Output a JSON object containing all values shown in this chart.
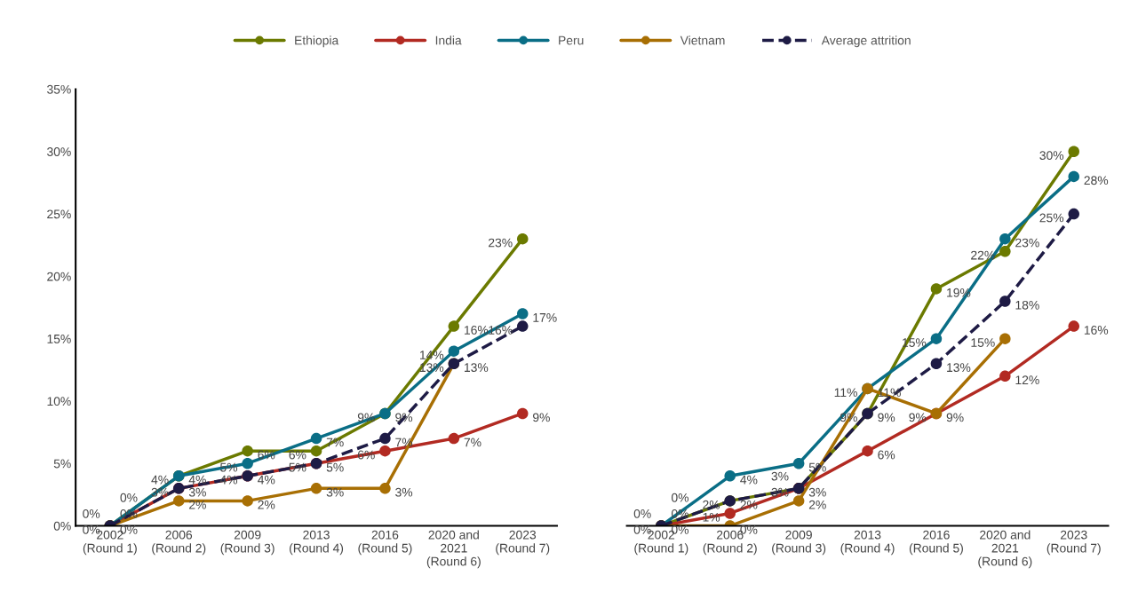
{
  "chart_data": [
    {
      "type": "line",
      "categories": [
        "2002\n(Round 1)",
        "2006\n(Round 2)",
        "2009\n(Round 3)",
        "2013\n(Round 4)",
        "2016\n(Round 5)",
        "2020 and\n2021\n(Round 6)",
        "2023\n(Round 7)"
      ],
      "series": [
        {
          "name": "Ethiopia",
          "color": "#6b7a00",
          "values": [
            0,
            4,
            6,
            6,
            9,
            16,
            23
          ],
          "value_labels": [
            "0%",
            "4%",
            "6%",
            "6%",
            "9%",
            "16%",
            "23%"
          ]
        },
        {
          "name": "India",
          "color": "#b22a22",
          "values": [
            0,
            3,
            4,
            5,
            6,
            7,
            9
          ],
          "value_labels": [
            "0%",
            "3%",
            "4%",
            "5%",
            "6%",
            "7%",
            "9%"
          ]
        },
        {
          "name": "Peru",
          "color": "#0a6e86",
          "values": [
            0,
            4,
            5,
            7,
            9,
            14,
            17
          ],
          "value_labels": [
            "0%",
            "4%",
            "5%",
            "7%",
            "9%",
            "14%",
            "17%"
          ]
        },
        {
          "name": "Vietnam",
          "color": "#a86f04",
          "values": [
            0,
            2,
            2,
            3,
            3,
            13,
            null
          ],
          "value_labels": [
            "0%",
            "2%",
            "2%",
            "3%",
            "3%",
            "13%",
            null
          ]
        },
        {
          "name": "Average attrition",
          "color": "#1e1b45",
          "line_style": "dashed",
          "values": [
            0,
            3,
            4,
            5,
            7,
            13,
            16
          ],
          "value_labels": [
            "0%",
            "3%",
            "4%",
            "5%",
            "7%",
            "13%",
            "16%"
          ]
        }
      ],
      "ylim": [
        0,
        35
      ],
      "yticks": [
        {
          "value": 0,
          "label": "0%"
        },
        {
          "value": 5,
          "label": "5%"
        },
        {
          "value": 10,
          "label": "10%"
        },
        {
          "value": 15,
          "label": "15%"
        },
        {
          "value": 20,
          "label": "20%"
        },
        {
          "value": 25,
          "label": "25%"
        },
        {
          "value": 30,
          "label": "30%"
        },
        {
          "value": 35,
          "label": "35%"
        }
      ],
      "marker": "circle",
      "line_style": "solid",
      "grid": false,
      "legend": "top"
    },
    {
      "type": "line",
      "categories": [
        "2002\n(Round 1)",
        "2006\n(Round 2)",
        "2009\n(Round 3)",
        "2013\n(Round 4)",
        "2016\n(Round 5)",
        "2020 and\n2021\n(Round 6)",
        "2023\n(Round 7)"
      ],
      "series": [
        {
          "name": "Ethiopia",
          "color": "#6b7a00",
          "values": [
            0,
            2,
            3,
            9,
            19,
            22,
            30
          ],
          "value_labels": [
            "0%",
            "2%",
            "3%",
            "9%",
            "19%",
            "22%",
            "30%"
          ]
        },
        {
          "name": "India",
          "color": "#b22a22",
          "values": [
            0,
            1,
            3,
            6,
            9,
            12,
            16
          ],
          "value_labels": [
            "0%",
            "1%",
            "3%",
            "6%",
            "9%",
            "12%",
            "16%"
          ]
        },
        {
          "name": "Peru",
          "color": "#0a6e86",
          "values": [
            0,
            4,
            5,
            11,
            15,
            23,
            28
          ],
          "value_labels": [
            "0%",
            "4%",
            "5%",
            "11%",
            "15%",
            "23%",
            "28%"
          ]
        },
        {
          "name": "Vietnam",
          "color": "#a86f04",
          "values": [
            0,
            0,
            2,
            11,
            9,
            15,
            null
          ],
          "value_labels": [
            "0%",
            "0%",
            "2%",
            "11%",
            "9%",
            "15%",
            null
          ]
        },
        {
          "name": "Average attrition",
          "color": "#1e1b45",
          "line_style": "dashed",
          "values": [
            0,
            2,
            3,
            9,
            13,
            18,
            25
          ],
          "value_labels": [
            "0%",
            "2%",
            "3%",
            "9%",
            "13%",
            "18%",
            "25%"
          ]
        }
      ],
      "ylim": [
        0,
        35
      ],
      "tick_labels": "x",
      "marker": "circle",
      "line_style": "solid",
      "grid": false,
      "legend": "top"
    }
  ]
}
